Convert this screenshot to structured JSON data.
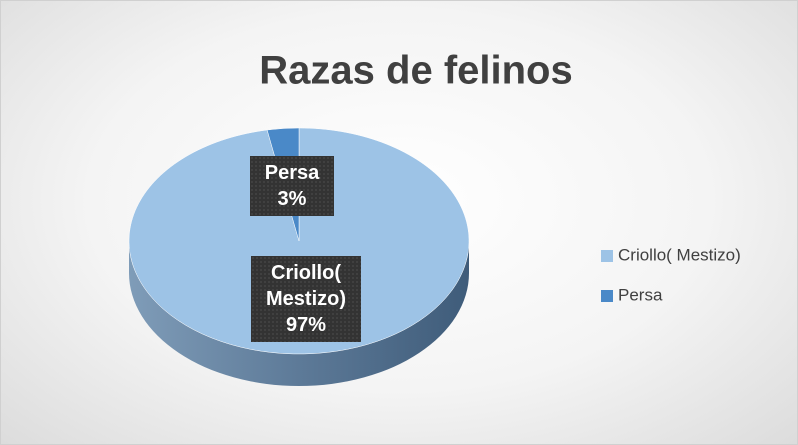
{
  "chart_data": {
    "type": "pie",
    "title": "Razas de felinos",
    "categories": [
      "Criollo( Mestizo)",
      "Persa"
    ],
    "values": [
      97,
      3
    ],
    "value_labels": [
      "97%",
      "3%"
    ],
    "colors": [
      "#9dc3e6",
      "#4a89c8"
    ],
    "legend": "right"
  }
}
